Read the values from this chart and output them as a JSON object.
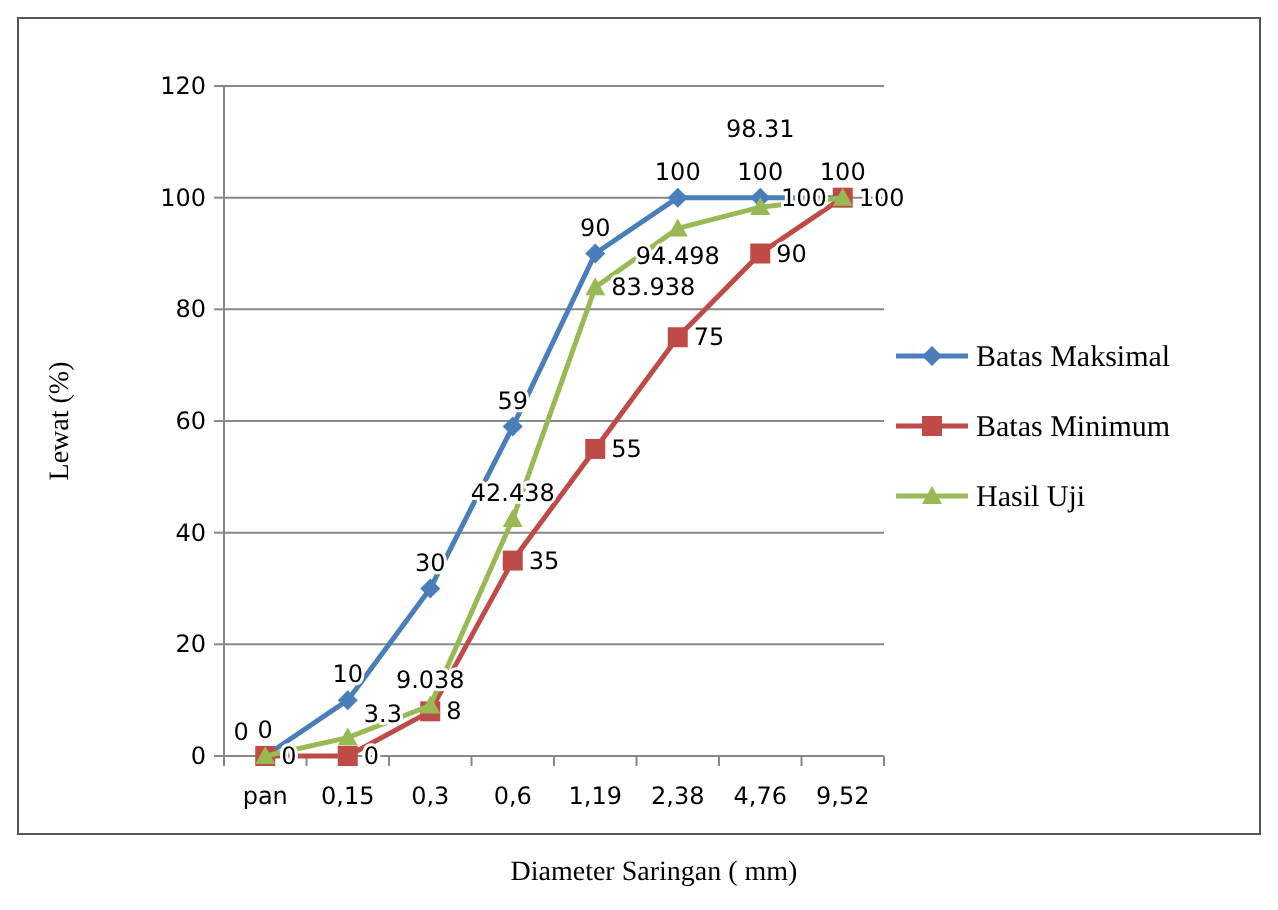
{
  "chart_data": {
    "type": "line",
    "xlabel": "Diameter Saringan ( mm)",
    "ylabel": "Lewat (%)",
    "categories": [
      "pan",
      "0,15",
      "0,3",
      "0,6",
      "1,19",
      "2,38",
      "4,76",
      "9,52"
    ],
    "series": [
      {
        "name": "Batas Maksimal",
        "color": "#4a7ebb",
        "marker": "diamond",
        "values": [
          0,
          10,
          30,
          59,
          90,
          100,
          100,
          100
        ]
      },
      {
        "name": "Batas Minimum",
        "color": "#be4b48",
        "marker": "square",
        "values": [
          0,
          0,
          8,
          35,
          55,
          75,
          90,
          100
        ]
      },
      {
        "name": "Hasil Uji",
        "color": "#98b954",
        "marker": "triangle",
        "values": [
          0,
          3.3,
          9.038,
          42.438,
          83.938,
          94.498,
          98.31,
          100
        ]
      }
    ],
    "ylim": [
      0,
      120
    ],
    "yticks": [
      0,
      20,
      40,
      60,
      80,
      100,
      120
    ],
    "grid": "y",
    "legend": "right",
    "data_labels": true,
    "line_style": "solid"
  }
}
